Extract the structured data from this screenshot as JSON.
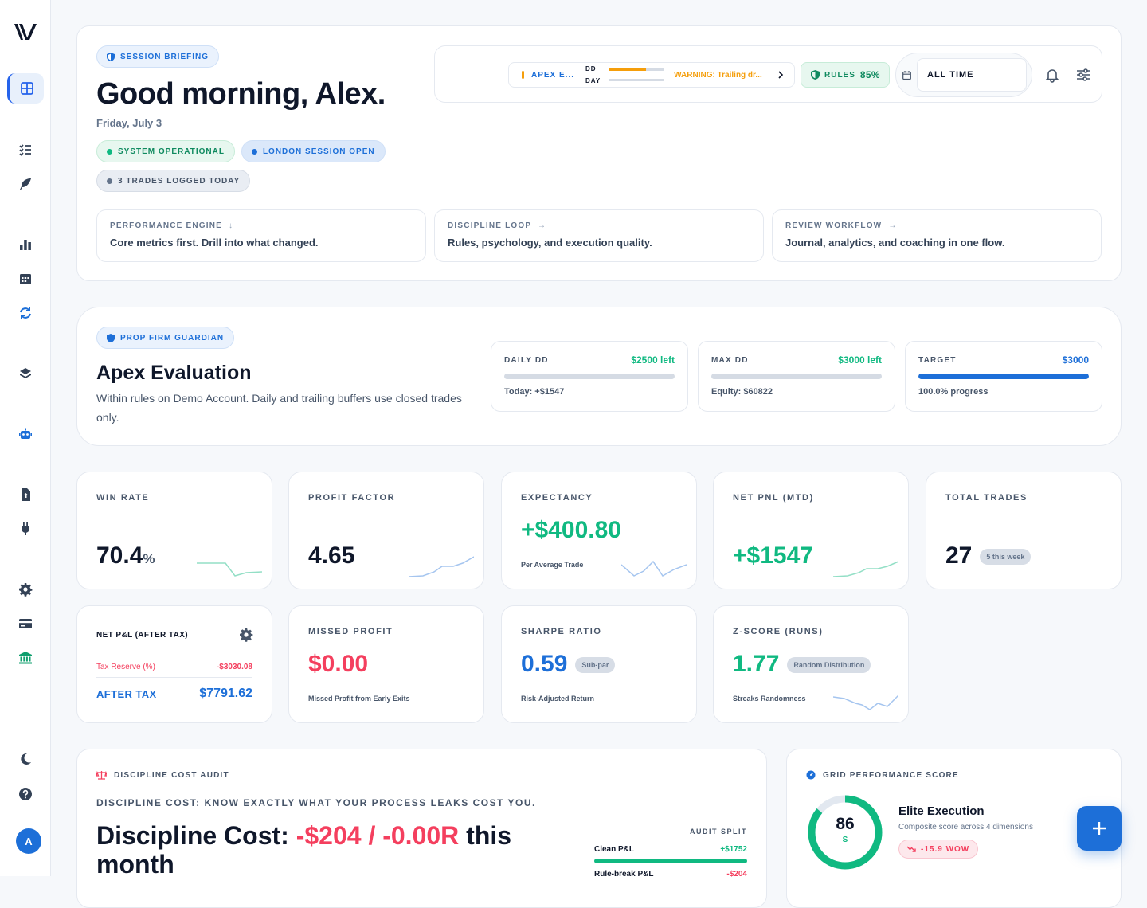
{
  "sidebar": {
    "avatar": "A",
    "items": [
      "dashboard-icon",
      "checklist-icon",
      "feather-icon",
      "chart-icon",
      "calendar-icon",
      "sync-icon",
      "layers-icon",
      "robot-icon",
      "file-upload-icon",
      "plug-icon",
      "gear-icon",
      "card-icon",
      "bank-icon",
      "moon-icon",
      "help-icon"
    ]
  },
  "hero": {
    "badge": "SESSION BRIEFING",
    "title": "Good morning, Alex.",
    "date": "Friday, July 3",
    "statuses": {
      "system": "SYSTEM OPERATIONAL",
      "session": "LONDON SESSION OPEN",
      "trades": "3 TRADES LOGGED TODAY"
    },
    "toolbar": {
      "account": "APEX E...",
      "dd_label": "DD",
      "day_label": "DAY",
      "dd_progress": 0.67,
      "day_progress": 0.0,
      "warning": "WARNING: Trailing dr...",
      "rules_label": "RULES",
      "rules_value": "85%",
      "range": "ALL TIME"
    },
    "features": [
      {
        "label": "PERFORMANCE ENGINE",
        "arrow": "↓",
        "desc": "Core metrics first. Drill into what changed."
      },
      {
        "label": "DISCIPLINE LOOP",
        "arrow": "→",
        "desc": "Rules, psychology, and execution quality."
      },
      {
        "label": "REVIEW WORKFLOW",
        "arrow": "→",
        "desc": "Journal, analytics, and coaching in one flow."
      }
    ]
  },
  "guardian": {
    "badge": "PROP FIRM GUARDIAN",
    "title": "Apex Evaluation",
    "desc": "Within rules on Demo Account. Daily and trailing buffers use closed trades only.",
    "metrics": [
      {
        "label": "DAILY DD",
        "value": "$2500 left",
        "sub": "Today: +$1547",
        "progress": 0.0,
        "color": "#10b981"
      },
      {
        "label": "MAX DD",
        "value": "$3000 left",
        "sub": "Equity: $60822",
        "progress": 0.0,
        "color": "#10b981"
      },
      {
        "label": "TARGET",
        "value": "$3000",
        "sub": "100.0% progress",
        "progress": 1.0,
        "color": "#1d6fd8"
      }
    ]
  },
  "kpis": {
    "win_rate": {
      "label": "WIN RATE",
      "value": "70.4",
      "unit": "%"
    },
    "profit_factor": {
      "label": "PROFIT FACTOR",
      "value": "4.65"
    },
    "expectancy": {
      "label": "EXPECTANCY",
      "value": "+$400.80",
      "sub": "Per Average Trade"
    },
    "net_pnl": {
      "label": "NET PNL (MTD)",
      "value": "+$1547"
    },
    "total_trades": {
      "label": "TOTAL TRADES",
      "value": "27",
      "badge": "5 this week"
    },
    "after_tax": {
      "label": "NET P&L (AFTER TAX)",
      "reserve_label": "Tax Reserve (%)",
      "reserve_value": "-$3030.08",
      "after_label": "AFTER TAX",
      "after_value": "$7791.62"
    },
    "missed_profit": {
      "label": "MISSED PROFIT",
      "value": "$0.00",
      "sub": "Missed Profit from Early Exits"
    },
    "sharpe": {
      "label": "SHARPE RATIO",
      "value": "0.59",
      "badge": "Sub-par",
      "sub": "Risk-Adjusted Return"
    },
    "zscore": {
      "label": "Z-SCORE (RUNS)",
      "value": "1.77",
      "badge": "Random Distribution",
      "sub": "Streaks Randomness"
    }
  },
  "discipline": {
    "badge": "DISCIPLINE COST AUDIT",
    "tagline": "DISCIPLINE COST: KNOW EXACTLY WHAT YOUR PROCESS LEAKS COST YOU.",
    "title_prefix": "Discipline Cost:",
    "title_value": "-$204 / -0.00R",
    "title_suffix": "this month",
    "audit_label": "AUDIT SPLIT",
    "clean_label": "Clean P&L",
    "clean_value": "+$1752",
    "rule_label": "Rule-break P&L",
    "rule_value": "-$204"
  },
  "grid_score": {
    "badge": "GRID PERFORMANCE SCORE",
    "score": "86",
    "grade": "S",
    "score_fraction": 0.86,
    "title": "Elite Execution",
    "desc": "Composite score across 4 dimensions",
    "wow": "-15.9 WOW"
  }
}
